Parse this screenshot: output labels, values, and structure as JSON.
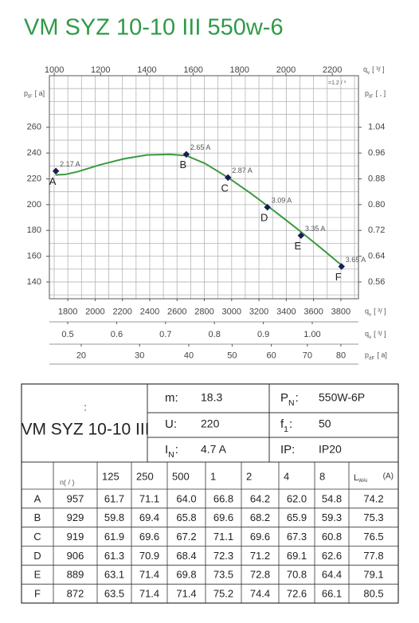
{
  "chart_data": {
    "type": "line",
    "title": "VM SYZ 10-10 III 550w-6",
    "x_label": {
      "main": "q",
      "sub": "v",
      "unit": "[    ³/    ]"
    },
    "x_note": "=1.2  / ³",
    "xlim": [
      979,
      2313
    ],
    "xticks": [
      1000,
      1200,
      1400,
      1600,
      1800,
      2000,
      2200
    ],
    "y_label": {
      "main": "p",
      "sub": "tF",
      "unit": "[   a]"
    },
    "ylim": [
      127,
      300
    ],
    "yticks": [
      140,
      160,
      180,
      200,
      220,
      240,
      260
    ],
    "ygrid": [
      130,
      140,
      150,
      160,
      170,
      180,
      190,
      200,
      210,
      220,
      230,
      240,
      250,
      260,
      270,
      280,
      290,
      300
    ],
    "y2_label": {
      "main": "p",
      "sub": "tF",
      "unit": "[      ,    ]"
    },
    "y2lim": [
      0.508,
      1.2
    ],
    "y2ticks": [
      {
        "value": 0.56,
        "label": "0.56"
      },
      {
        "value": 0.64,
        "label": "0.64"
      },
      {
        "value": 0.72,
        "label": "0.72"
      },
      {
        "value": 0.8,
        "label": "0.80"
      },
      0.88,
      0.96,
      1.04
    ],
    "grid": true,
    "extra_x_axes": [
      {
        "label": {
          "main": "q",
          "sub": "v",
          "unit": "[    ³/    ]"
        },
        "xlim": [
          1665,
          3929
        ],
        "xticks": [
          1800,
          2000,
          2200,
          2400,
          2600,
          2800,
          3000,
          3200,
          3400,
          3600,
          3800
        ],
        "xgrid": [
          1700,
          1800,
          1900,
          2000,
          2100,
          2200,
          2300,
          2400,
          2500,
          2600,
          2700,
          2800,
          2900,
          3000,
          3100,
          3200,
          3300,
          3400,
          3500,
          3600,
          3700,
          3800,
          3900
        ]
      },
      {
        "label": {
          "main": "q",
          "sub": "v",
          "unit": "[    ³/    ]"
        },
        "xlim": [
          0.4625,
          1.0945
        ],
        "xticks": [
          0.5,
          0.6,
          0.7,
          0.8,
          0.9,
          {
            "value": 1,
            "label": "1.00"
          }
        ]
      },
      {
        "label": {
          "main": "p",
          "sub": "dF",
          "unit": "[   a]"
        },
        "xlim": [
          15.4,
          85.5
        ],
        "scale": "sqrt",
        "xticks": [
          20,
          30,
          40,
          50,
          60,
          70,
          80
        ]
      }
    ],
    "series": [
      {
        "color": "#3a9a3e",
        "x": [
          1005,
          1050,
          1100,
          1200,
          1300,
          1400,
          1500,
          1570,
          1650,
          1750,
          1850,
          1950,
          2050,
          2150,
          2240
        ],
        "values": [
          223,
          223.5,
          225.5,
          231,
          235.5,
          238.5,
          239,
          238,
          232,
          221,
          208.5,
          195,
          181,
          166.5,
          153
        ]
      }
    ],
    "points": {
      "color": "#1c1c5a",
      "x": [
        1007,
        1570,
        1750,
        1920,
        2065,
        2240
      ],
      "values": [
        226,
        239,
        221,
        198,
        176,
        152
      ],
      "letters": [
        "A",
        "B",
        "C",
        "D",
        "E",
        "F"
      ],
      "current_labels": [
        "2.17 A",
        "2.65 A",
        "2.87 A",
        "3.09 A",
        "3.35 A",
        "3.65 A"
      ]
    }
  },
  "table": {
    "model_note": ":",
    "model": "VM SYZ 10-10 III",
    "specs": [
      {
        "main": "m:",
        "value": "18.3"
      },
      {
        "main": "P",
        "sub": "N",
        "suffix": ":",
        "value": "550W-6P"
      },
      {
        "main": "U:",
        "value": "220"
      },
      {
        "main": "f",
        "sub": "1",
        "suffix": ":",
        "value": "50"
      },
      {
        "main": "I",
        "sub": "N",
        "suffix": ":",
        "value": "4.7 A"
      },
      {
        "main": "IP:",
        "value": "IP20"
      }
    ],
    "header": [
      "n( / )",
      "125",
      "250",
      "500",
      "1",
      "2",
      "4",
      "8",
      {
        "main": "L",
        "sub": "WAi",
        "unit": "(A)"
      }
    ],
    "rows": [
      [
        "A",
        "957",
        "61.7",
        "71.1",
        "64.0",
        "66.8",
        "64.2",
        "62.0",
        "54.8",
        "74.2"
      ],
      [
        "B",
        "929",
        "59.8",
        "69.4",
        "65.8",
        "69.6",
        "68.2",
        "65.9",
        "59.3",
        "75.3"
      ],
      [
        "C",
        "919",
        "61.9",
        "69.6",
        "67.2",
        "71.1",
        "69.6",
        "67.3",
        "60.8",
        "76.5"
      ],
      [
        "D",
        "906",
        "61.3",
        "70.9",
        "68.4",
        "72.3",
        "71.2",
        "69.1",
        "62.6",
        "77.8"
      ],
      [
        "E",
        "889",
        "63.1",
        "71.4",
        "69.8",
        "73.5",
        "72.8",
        "70.8",
        "64.4",
        "79.1"
      ],
      [
        "F",
        "872",
        "63.5",
        "71.4",
        "71.4",
        "75.2",
        "74.4",
        "72.6",
        "66.1",
        "80.5"
      ]
    ]
  }
}
